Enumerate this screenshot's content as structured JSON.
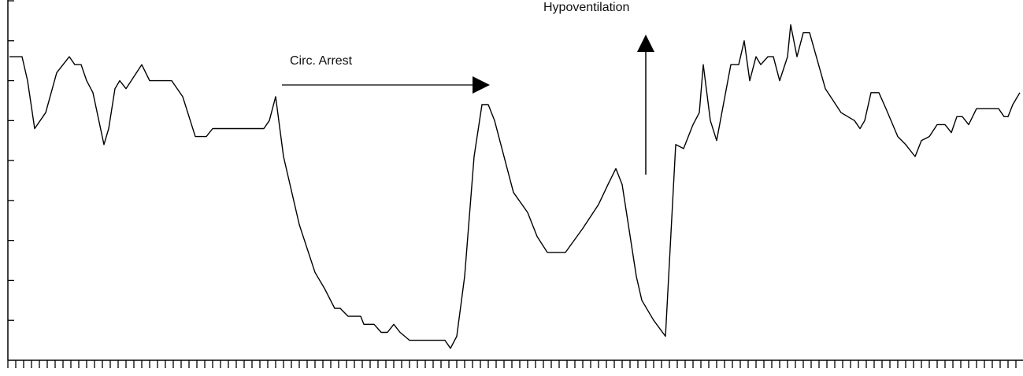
{
  "chart_data": {
    "type": "line",
    "annotations": [
      "Circ. Arrest",
      "Hypoventilation"
    ],
    "color": "#000000",
    "x": [
      2,
      18,
      25,
      34,
      48,
      62,
      78,
      85,
      93,
      100,
      108,
      122,
      128,
      136,
      142,
      150,
      170,
      180,
      208,
      222,
      238,
      252,
      260,
      325,
      332,
      340,
      350,
      370,
      390,
      402,
      415,
      422,
      432,
      448,
      452,
      465,
      474,
      482,
      490,
      498,
      510,
      555,
      562,
      570,
      580,
      592,
      602,
      610,
      618,
      642,
      660,
      672,
      685,
      708,
      730,
      750,
      762,
      772,
      780,
      798,
      805,
      820,
      835,
      848,
      858,
      870,
      878,
      883,
      892,
      900,
      918,
      928,
      935,
      942,
      950,
      956,
      965,
      972,
      980,
      990,
      994,
      1002,
      1010,
      1018,
      1038,
      1058,
      1075,
      1082,
      1088,
      1096,
      1106,
      1115,
      1130,
      1140,
      1152,
      1160,
      1170,
      1180,
      1190,
      1198,
      1205,
      1212,
      1220,
      1230,
      1258,
      1265,
      1270,
      1276,
      1285
    ],
    "values": [
      7.6,
      7.6,
      7.0,
      5.8,
      6.2,
      7.2,
      7.6,
      7.4,
      7.4,
      7.0,
      6.7,
      5.4,
      5.8,
      6.8,
      7.0,
      6.8,
      7.4,
      7.0,
      7.0,
      6.6,
      5.6,
      5.6,
      5.8,
      5.8,
      6.0,
      6.6,
      5.1,
      3.4,
      2.2,
      1.8,
      1.3,
      1.3,
      1.1,
      1.1,
      0.9,
      0.9,
      0.7,
      0.7,
      0.9,
      0.7,
      0.5,
      0.5,
      0.3,
      0.6,
      2.1,
      5.1,
      6.4,
      6.4,
      6.0,
      4.2,
      3.7,
      3.1,
      2.7,
      2.7,
      3.3,
      3.9,
      4.4,
      4.8,
      4.4,
      2.1,
      1.5,
      1.0,
      0.6,
      5.4,
      5.3,
      5.9,
      6.2,
      7.4,
      6.0,
      5.5,
      7.4,
      7.4,
      8.0,
      7.0,
      7.6,
      7.4,
      7.6,
      7.6,
      7.0,
      7.6,
      8.4,
      7.6,
      8.2,
      8.2,
      6.8,
      6.2,
      6.0,
      5.8,
      6.0,
      6.7,
      6.7,
      6.3,
      5.6,
      5.4,
      5.1,
      5.5,
      5.6,
      5.9,
      5.9,
      5.7,
      6.1,
      6.1,
      5.9,
      6.3,
      6.3,
      6.1,
      6.1,
      6.4,
      6.7
    ],
    "xlim": [
      0,
      1290
    ],
    "ylim": [
      0,
      9
    ],
    "yticks": [
      1,
      2,
      3,
      4,
      5,
      6,
      7,
      8,
      9
    ],
    "xticks": [
      0,
      10,
      20,
      30,
      40,
      50,
      60,
      70,
      80,
      90,
      100,
      110,
      120,
      130,
      140,
      150,
      160,
      170,
      180,
      190,
      200,
      210,
      220,
      230,
      240,
      250,
      260,
      270,
      280,
      290,
      300,
      310,
      320,
      330,
      340,
      350,
      360,
      370,
      380,
      390,
      400,
      410,
      420,
      430,
      440,
      450,
      460,
      470,
      480,
      490,
      500,
      510,
      520,
      530,
      540,
      550,
      560,
      570,
      580,
      590,
      600,
      610,
      620,
      630,
      640,
      650,
      660,
      670,
      680,
      690,
      700,
      710,
      720,
      730,
      740,
      750,
      760,
      770,
      780,
      790,
      800,
      810,
      820,
      830,
      840,
      850,
      860,
      870,
      880,
      890,
      900,
      910,
      920,
      930,
      940,
      950,
      960,
      970,
      980,
      990,
      1000,
      1010,
      1020,
      1030,
      1040,
      1050,
      1060,
      1070,
      1080,
      1090,
      1100,
      1110,
      1120,
      1130,
      1140,
      1150,
      1160,
      1170,
      1180,
      1190,
      1200,
      1210,
      1220,
      1230,
      1240,
      1250,
      1260,
      1270,
      1280,
      1290
    ]
  }
}
